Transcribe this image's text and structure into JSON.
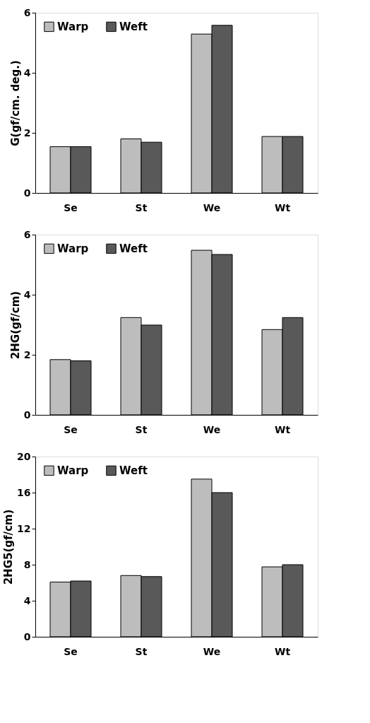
{
  "chart_data": [
    {
      "type": "bar",
      "ylabel": "G(gf/cm. deg.)",
      "categories": [
        "Se",
        "St",
        "We",
        "Wt"
      ],
      "series": [
        {
          "name": "Warp",
          "color": "#bdbdbd",
          "values": [
            1.54,
            1.8,
            5.29,
            1.88
          ]
        },
        {
          "name": "Weft",
          "color": "#595959",
          "values": [
            1.54,
            1.69,
            5.58,
            1.88
          ]
        }
      ],
      "ylim": [
        0,
        6
      ],
      "yticks": [
        0,
        2,
        4,
        6
      ],
      "grid": false,
      "legend": "top left"
    },
    {
      "type": "bar",
      "ylabel": "2HG(gf/cm)",
      "categories": [
        "Se",
        "St",
        "We",
        "Wt"
      ],
      "series": [
        {
          "name": "Warp",
          "color": "#bdbdbd",
          "values": [
            1.84,
            3.24,
            5.48,
            2.84
          ]
        },
        {
          "name": "Weft",
          "color": "#595959",
          "values": [
            1.8,
            2.99,
            5.34,
            3.24
          ]
        }
      ],
      "ylim": [
        0,
        6
      ],
      "yticks": [
        0,
        2,
        4,
        6
      ],
      "grid": false,
      "legend": "top left"
    },
    {
      "type": "bar",
      "ylabel": "2HG5(gf/cm)",
      "categories": [
        "Se",
        "St",
        "We",
        "Wt"
      ],
      "series": [
        {
          "name": "Warp",
          "color": "#bdbdbd",
          "values": [
            6.07,
            6.8,
            17.5,
            7.76
          ]
        },
        {
          "name": "Weft",
          "color": "#595959",
          "values": [
            6.19,
            6.68,
            16.0,
            8.0
          ]
        }
      ],
      "ylim": [
        0,
        20
      ],
      "yticks": [
        0,
        4,
        8,
        12,
        16,
        20
      ],
      "grid": false,
      "legend": "top left"
    }
  ]
}
